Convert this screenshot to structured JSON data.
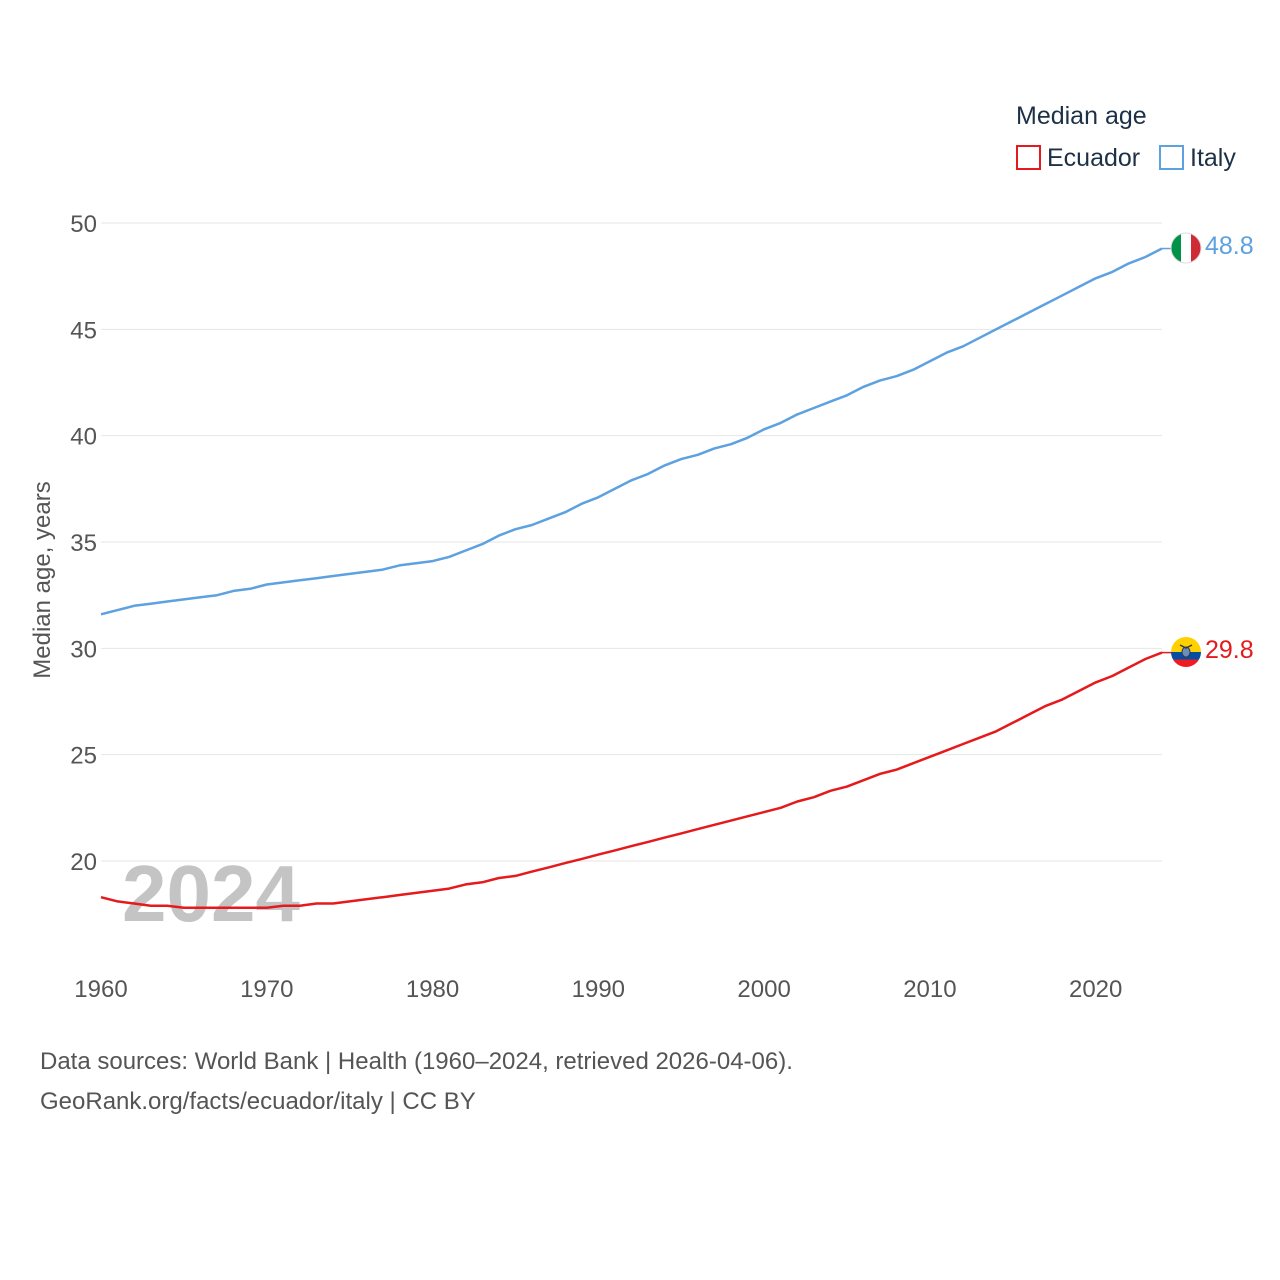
{
  "chart_data": {
    "type": "line",
    "title": "Median age",
    "xlabel": "",
    "ylabel": "Median age, years",
    "xlim": [
      1960,
      2024
    ],
    "ylim": [
      15,
      50
    ],
    "yticks": [
      20,
      25,
      30,
      35,
      40,
      45,
      50
    ],
    "xticks": [
      1960,
      1970,
      1980,
      1990,
      2000,
      2010,
      2020
    ],
    "watermark_year": "2024",
    "legend": {
      "title": "Median age",
      "position": "top-right"
    },
    "x": [
      1960,
      1961,
      1962,
      1963,
      1964,
      1965,
      1966,
      1967,
      1968,
      1969,
      1970,
      1971,
      1972,
      1973,
      1974,
      1975,
      1976,
      1977,
      1978,
      1979,
      1980,
      1981,
      1982,
      1983,
      1984,
      1985,
      1986,
      1987,
      1988,
      1989,
      1990,
      1991,
      1992,
      1993,
      1994,
      1995,
      1996,
      1997,
      1998,
      1999,
      2000,
      2001,
      2002,
      2003,
      2004,
      2005,
      2006,
      2007,
      2008,
      2009,
      2010,
      2011,
      2012,
      2013,
      2014,
      2015,
      2016,
      2017,
      2018,
      2019,
      2020,
      2021,
      2022,
      2023,
      2024
    ],
    "series": [
      {
        "name": "Ecuador",
        "color": "#e41a1c",
        "flag": "ecuador-flag",
        "end_label": "29.8",
        "values": [
          18.3,
          18.1,
          18.0,
          17.9,
          17.9,
          17.8,
          17.8,
          17.8,
          17.8,
          17.8,
          17.8,
          17.9,
          17.9,
          18.0,
          18.0,
          18.1,
          18.2,
          18.3,
          18.4,
          18.5,
          18.6,
          18.7,
          18.9,
          19.0,
          19.2,
          19.3,
          19.5,
          19.7,
          19.9,
          20.1,
          20.3,
          20.5,
          20.7,
          20.9,
          21.1,
          21.3,
          21.5,
          21.7,
          21.9,
          22.1,
          22.3,
          22.5,
          22.8,
          23.0,
          23.3,
          23.5,
          23.8,
          24.1,
          24.3,
          24.6,
          24.9,
          25.2,
          25.5,
          25.8,
          26.1,
          26.5,
          26.9,
          27.3,
          27.6,
          28.0,
          28.4,
          28.7,
          29.1,
          29.5,
          29.8
        ]
      },
      {
        "name": "Italy",
        "color": "#5da1e0",
        "flag": "italy-flag",
        "end_label": "48.8",
        "values": [
          31.6,
          31.8,
          32.0,
          32.1,
          32.2,
          32.3,
          32.4,
          32.5,
          32.7,
          32.8,
          33.0,
          33.1,
          33.2,
          33.3,
          33.4,
          33.5,
          33.6,
          33.7,
          33.9,
          34.0,
          34.1,
          34.3,
          34.6,
          34.9,
          35.3,
          35.6,
          35.8,
          36.1,
          36.4,
          36.8,
          37.1,
          37.5,
          37.9,
          38.2,
          38.6,
          38.9,
          39.1,
          39.4,
          39.6,
          39.9,
          40.3,
          40.6,
          41.0,
          41.3,
          41.6,
          41.9,
          42.3,
          42.6,
          42.8,
          43.1,
          43.5,
          43.9,
          44.2,
          44.6,
          45.0,
          45.4,
          45.8,
          46.2,
          46.6,
          47.0,
          47.4,
          47.7,
          48.1,
          48.4,
          48.8
        ]
      }
    ]
  },
  "footer": {
    "line1": "Data sources: World Bank | Health (1960–2024, retrieved 2026-04-06).",
    "line2": "GeoRank.org/facts/ecuador/italy | CC BY"
  }
}
